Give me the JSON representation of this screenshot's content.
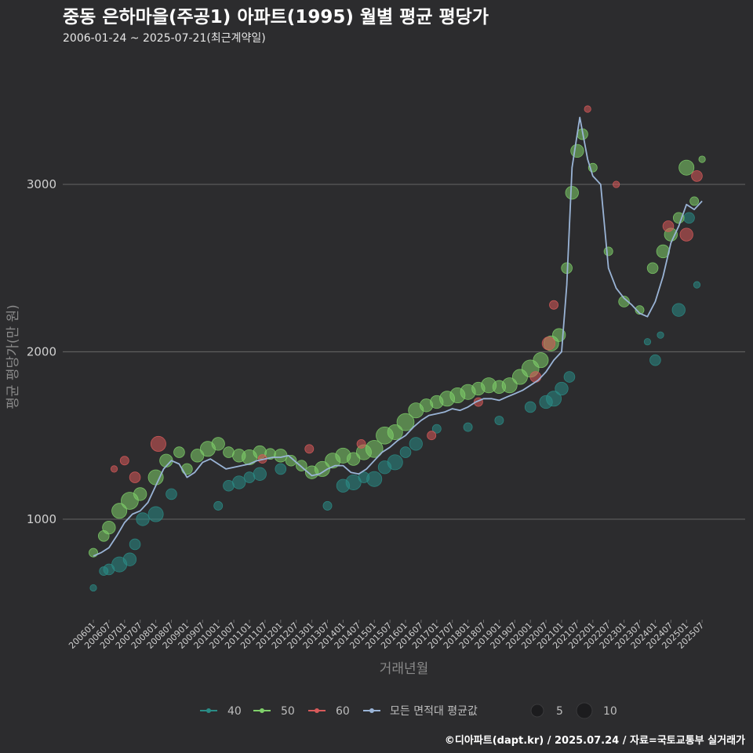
{
  "chart_data": {
    "type": "scatter",
    "title": "중동 은하마을(주공1) 아파트(1995) 월별 평균 평당가",
    "subtitle": "2006-01-24 ~ 2025-07-21(최근계약일)",
    "xlabel": "거래년월",
    "ylabel": "평균 평당가(만 원)",
    "caption": "©디아파트(dapt.kr) / 2025.07.24 / 자료=국토교통부 실거래가",
    "ylim": [
      400,
      3750
    ],
    "yticks": [
      1000,
      2000,
      3000
    ],
    "grid": true,
    "legend_position": "bottom",
    "x_ticks": [
      "200601",
      "200607",
      "200701",
      "200707",
      "200801",
      "200807",
      "200901",
      "200907",
      "201001",
      "201007",
      "201101",
      "201107",
      "201201",
      "201207",
      "201301",
      "201307",
      "201401",
      "201407",
      "201501",
      "201507",
      "201601",
      "201607",
      "201701",
      "201707",
      "201801",
      "201807",
      "201901",
      "201907",
      "202001",
      "202007",
      "202101",
      "202107",
      "202201",
      "202207",
      "202301",
      "202307",
      "202401",
      "202407",
      "202501",
      "202507"
    ],
    "series": [
      {
        "name": "40",
        "color": "#2a8c86",
        "points": [
          [
            "200601",
            590,
            2
          ],
          [
            "200605",
            690,
            3
          ],
          [
            "200607",
            700,
            4
          ],
          [
            "200611",
            730,
            6
          ],
          [
            "200703",
            760,
            5
          ],
          [
            "200705",
            850,
            4
          ],
          [
            "200708",
            1000,
            5
          ],
          [
            "200801",
            1030,
            6
          ],
          [
            "200807",
            1150,
            4
          ],
          [
            "201001",
            1080,
            3
          ],
          [
            "201005",
            1200,
            4
          ],
          [
            "201009",
            1220,
            5
          ],
          [
            "201101",
            1250,
            4
          ],
          [
            "201105",
            1270,
            5
          ],
          [
            "201201",
            1300,
            4
          ],
          [
            "201307",
            1080,
            3
          ],
          [
            "201401",
            1200,
            5
          ],
          [
            "201405",
            1220,
            6
          ],
          [
            "201409",
            1250,
            4
          ],
          [
            "201501",
            1240,
            6
          ],
          [
            "201505",
            1310,
            5
          ],
          [
            "201509",
            1340,
            6
          ],
          [
            "201601",
            1400,
            4
          ],
          [
            "201605",
            1450,
            5
          ],
          [
            "201701",
            1540,
            3
          ],
          [
            "201801",
            1550,
            3
          ],
          [
            "201901",
            1590,
            3
          ],
          [
            "202001",
            1670,
            4
          ],
          [
            "202007",
            1700,
            5
          ],
          [
            "202010",
            1720,
            6
          ],
          [
            "202101",
            1780,
            5
          ],
          [
            "202104",
            1850,
            4
          ],
          [
            "202310",
            2060,
            2
          ],
          [
            "202401",
            1950,
            4
          ],
          [
            "202403",
            2100,
            2
          ],
          [
            "202410",
            2250,
            5
          ],
          [
            "202502",
            2800,
            4
          ],
          [
            "202505",
            2400,
            2
          ]
        ]
      },
      {
        "name": "50",
        "color": "#7fd06a",
        "points": [
          [
            "200601",
            800,
            3
          ],
          [
            "200605",
            900,
            4
          ],
          [
            "200607",
            950,
            5
          ],
          [
            "200611",
            1050,
            6
          ],
          [
            "200703",
            1110,
            7
          ],
          [
            "200707",
            1150,
            5
          ],
          [
            "200801",
            1250,
            6
          ],
          [
            "200805",
            1350,
            5
          ],
          [
            "200810",
            1400,
            4
          ],
          [
            "200901",
            1300,
            4
          ],
          [
            "200905",
            1380,
            5
          ],
          [
            "200909",
            1420,
            6
          ],
          [
            "201001",
            1450,
            5
          ],
          [
            "201005",
            1400,
            4
          ],
          [
            "201009",
            1380,
            5
          ],
          [
            "201101",
            1370,
            6
          ],
          [
            "201105",
            1400,
            5
          ],
          [
            "201109",
            1390,
            4
          ],
          [
            "201201",
            1380,
            5
          ],
          [
            "201205",
            1350,
            4
          ],
          [
            "201209",
            1320,
            4
          ],
          [
            "201301",
            1280,
            5
          ],
          [
            "201305",
            1300,
            6
          ],
          [
            "201309",
            1350,
            6
          ],
          [
            "201401",
            1380,
            6
          ],
          [
            "201405",
            1360,
            5
          ],
          [
            "201409",
            1400,
            6
          ],
          [
            "201501",
            1420,
            7
          ],
          [
            "201505",
            1500,
            7
          ],
          [
            "201509",
            1520,
            6
          ],
          [
            "201601",
            1580,
            7
          ],
          [
            "201605",
            1650,
            6
          ],
          [
            "201609",
            1680,
            5
          ],
          [
            "201701",
            1700,
            5
          ],
          [
            "201705",
            1720,
            6
          ],
          [
            "201709",
            1740,
            6
          ],
          [
            "201801",
            1760,
            6
          ],
          [
            "201805",
            1780,
            5
          ],
          [
            "201809",
            1800,
            6
          ],
          [
            "201901",
            1790,
            5
          ],
          [
            "201905",
            1800,
            6
          ],
          [
            "201909",
            1850,
            6
          ],
          [
            "202001",
            1900,
            7
          ],
          [
            "202005",
            1950,
            6
          ],
          [
            "202009",
            2050,
            6
          ],
          [
            "202012",
            2100,
            5
          ],
          [
            "202103",
            2500,
            4
          ],
          [
            "202105",
            2950,
            5
          ],
          [
            "202107",
            3200,
            5
          ],
          [
            "202109",
            3300,
            4
          ],
          [
            "202201",
            3100,
            3
          ],
          [
            "202207",
            2600,
            3
          ],
          [
            "202301",
            2300,
            4
          ],
          [
            "202307",
            2250,
            3
          ],
          [
            "202312",
            2500,
            4
          ],
          [
            "202404",
            2600,
            5
          ],
          [
            "202407",
            2700,
            5
          ],
          [
            "202410",
            2800,
            4
          ],
          [
            "202501",
            3100,
            6
          ],
          [
            "202504",
            2900,
            3
          ],
          [
            "202507",
            3150,
            2
          ]
        ]
      },
      {
        "name": "60",
        "color": "#d85a5a",
        "points": [
          [
            "200609",
            1300,
            2
          ],
          [
            "200701",
            1350,
            3
          ],
          [
            "200705",
            1250,
            4
          ],
          [
            "200802",
            1450,
            6
          ],
          [
            "201106",
            1360,
            3
          ],
          [
            "201212",
            1420,
            3
          ],
          [
            "201408",
            1450,
            3
          ],
          [
            "201611",
            1500,
            3
          ],
          [
            "201805",
            1700,
            3
          ],
          [
            "202003",
            1850,
            4
          ],
          [
            "202008",
            2050,
            5
          ],
          [
            "202010",
            2280,
            3
          ],
          [
            "202111",
            3450,
            2
          ],
          [
            "202210",
            3000,
            2
          ],
          [
            "202406",
            2750,
            4
          ],
          [
            "202501",
            2700,
            5
          ],
          [
            "202505",
            3050,
            4
          ]
        ]
      }
    ],
    "mean_series": {
      "name": "모든 면적대 평균값",
      "color": "#9ab4d6",
      "points": [
        [
          "200601",
          780
        ],
        [
          "200604",
          800
        ],
        [
          "200607",
          830
        ],
        [
          "200610",
          900
        ],
        [
          "200701",
          980
        ],
        [
          "200704",
          1030
        ],
        [
          "200707",
          1050
        ],
        [
          "200710",
          1100
        ],
        [
          "200801",
          1200
        ],
        [
          "200804",
          1300
        ],
        [
          "200807",
          1350
        ],
        [
          "200810",
          1330
        ],
        [
          "200901",
          1250
        ],
        [
          "200904",
          1280
        ],
        [
          "200907",
          1340
        ],
        [
          "200910",
          1360
        ],
        [
          "201001",
          1330
        ],
        [
          "201004",
          1300
        ],
        [
          "201007",
          1310
        ],
        [
          "201010",
          1320
        ],
        [
          "201101",
          1330
        ],
        [
          "201104",
          1350
        ],
        [
          "201107",
          1360
        ],
        [
          "201110",
          1370
        ],
        [
          "201201",
          1370
        ],
        [
          "201204",
          1380
        ],
        [
          "201207",
          1340
        ],
        [
          "201210",
          1300
        ],
        [
          "201301",
          1260
        ],
        [
          "201304",
          1270
        ],
        [
          "201307",
          1300
        ],
        [
          "201310",
          1320
        ],
        [
          "201401",
          1320
        ],
        [
          "201404",
          1280
        ],
        [
          "201407",
          1270
        ],
        [
          "201410",
          1300
        ],
        [
          "201501",
          1350
        ],
        [
          "201504",
          1400
        ],
        [
          "201507",
          1430
        ],
        [
          "201510",
          1470
        ],
        [
          "201601",
          1500
        ],
        [
          "201604",
          1550
        ],
        [
          "201607",
          1590
        ],
        [
          "201610",
          1620
        ],
        [
          "201701",
          1630
        ],
        [
          "201704",
          1640
        ],
        [
          "201707",
          1660
        ],
        [
          "201710",
          1650
        ],
        [
          "201801",
          1670
        ],
        [
          "201804",
          1700
        ],
        [
          "201807",
          1720
        ],
        [
          "201810",
          1720
        ],
        [
          "201901",
          1710
        ],
        [
          "201904",
          1730
        ],
        [
          "201907",
          1750
        ],
        [
          "201910",
          1770
        ],
        [
          "202001",
          1800
        ],
        [
          "202004",
          1830
        ],
        [
          "202007",
          1880
        ],
        [
          "202010",
          1950
        ],
        [
          "202101",
          2000
        ],
        [
          "202103",
          2400
        ],
        [
          "202105",
          3100
        ],
        [
          "202108",
          3400
        ],
        [
          "202111",
          3150
        ],
        [
          "202201",
          3050
        ],
        [
          "202204",
          3000
        ],
        [
          "202207",
          2500
        ],
        [
          "202210",
          2380
        ],
        [
          "202301",
          2320
        ],
        [
          "202304",
          2280
        ],
        [
          "202307",
          2230
        ],
        [
          "202310",
          2210
        ],
        [
          "202401",
          2300
        ],
        [
          "202404",
          2450
        ],
        [
          "202407",
          2650
        ],
        [
          "202410",
          2750
        ],
        [
          "202501",
          2880
        ],
        [
          "202504",
          2850
        ],
        [
          "202507",
          2900
        ]
      ]
    },
    "legend": {
      "items": [
        "40",
        "50",
        "60",
        "모든 면적대 평균값"
      ],
      "size_items": [
        "5",
        "10"
      ]
    }
  }
}
